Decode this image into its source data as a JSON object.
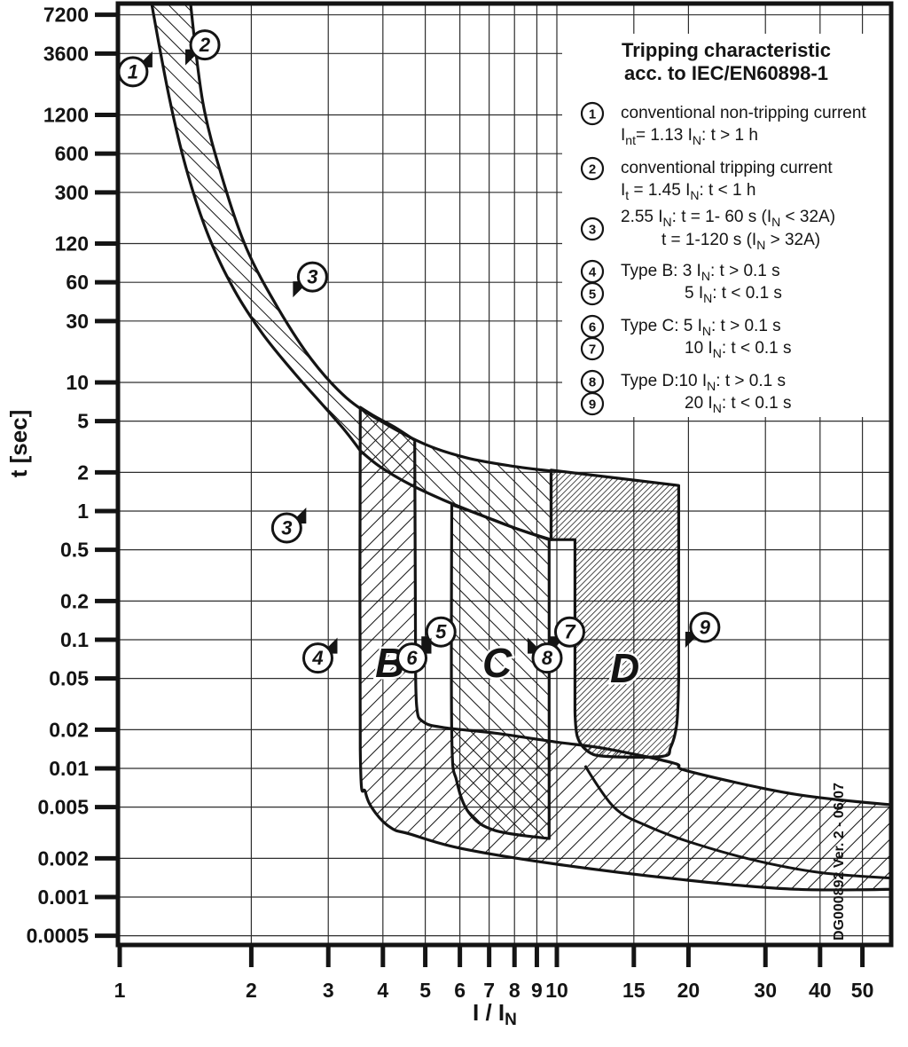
{
  "chart_data": {
    "type": "area",
    "title": "Tripping characteristic acc. to IEC/EN60898-1",
    "title_lines": [
      "Tripping characteristic",
      "acc. to IEC/EN60898-1"
    ],
    "xlabel": "I / I~N~",
    "ylabel": "t [sec]",
    "x_ticks": [
      1,
      2,
      3,
      4,
      5,
      6,
      7,
      8,
      9,
      10,
      15,
      20,
      30,
      40,
      50
    ],
    "y_ticks": [
      7200,
      3600,
      1200,
      600,
      300,
      120,
      60,
      30,
      10,
      5,
      2,
      1,
      0.5,
      0.2,
      0.1,
      0.05,
      0.02,
      0.01,
      0.005,
      0.002,
      0.001,
      0.0005
    ],
    "xlim": [
      1,
      58.5
    ],
    "ylim": [
      0.00035,
      9300
    ],
    "grid": true,
    "legend_position": "top-right",
    "side_text": "DG000892 Ver. 2 - 06/07",
    "colors": {
      "ink": "#141414",
      "grid": "#2e2e2e",
      "background": "#ffffff"
    },
    "legend_items": [
      {
        "num": "1",
        "lines": [
          [
            "conventional non-tripping current",
            0
          ],
          [
            "I~nt~= 1.13 I~N~: t > 1 h",
            0
          ]
        ]
      },
      {
        "num": "2",
        "lines": [
          [
            "conventional tripping current",
            0
          ],
          [
            "I~t~ = 1.45 I~N~: t < 1 h",
            0
          ]
        ]
      },
      {
        "num": "3",
        "lines": [
          [
            "2.55 I~N~: t = 1- 60 s (I~N~ < 32A)",
            0
          ],
          [
            "t = 1-120 s (I~N~ > 32A)",
            1
          ]
        ]
      },
      {
        "num": "4",
        "lines": [
          [
            "Type B: 3 I~N~: t > 0.1 s",
            0
          ]
        ]
      },
      {
        "num": "5",
        "lines": [
          [
            "5 I~N~: t < 0.1 s",
            2
          ]
        ]
      },
      {
        "num": "6",
        "lines": [
          [
            "Type C: 5 I~N~: t > 0.1 s",
            0
          ]
        ]
      },
      {
        "num": "7",
        "lines": [
          [
            "10 I~N~: t < 0.1 s",
            2
          ]
        ]
      },
      {
        "num": "8",
        "lines": [
          [
            "Type D:10 I~N~: t > 0.1 s",
            0
          ]
        ]
      },
      {
        "num": "9",
        "lines": [
          [
            "20 I~N~: t < 0.1 s",
            2
          ]
        ]
      }
    ],
    "band_labels": [
      {
        "text": "B",
        "x": 4.15,
        "t": 0.066
      },
      {
        "text": "C",
        "x": 7.3,
        "t": 0.066
      },
      {
        "text": "D",
        "x": 14.3,
        "t": 0.06
      }
    ],
    "markers": [
      {
        "num": "1",
        "x": 1.072,
        "t": 2600,
        "flag": "ne"
      },
      {
        "num": "2",
        "x": 1.566,
        "t": 4200,
        "flag": "sw"
      },
      {
        "num": "3",
        "x": 2.76,
        "t": 66,
        "flag": "sw"
      },
      {
        "num": "3",
        "x": 2.41,
        "t": 0.74,
        "flag": "ne"
      },
      {
        "num": "4",
        "x": 2.84,
        "t": 0.072,
        "flag": "ne"
      },
      {
        "num": "5",
        "x": 5.43,
        "t": 0.115,
        "flag": "sw"
      },
      {
        "num": "6",
        "x": 4.66,
        "t": 0.072,
        "flag": "ne"
      },
      {
        "num": "7",
        "x": 10.7,
        "t": 0.115,
        "flag": "sw"
      },
      {
        "num": "8",
        "x": 9.5,
        "t": 0.072,
        "flag": "nw"
      },
      {
        "num": "9",
        "x": 21.8,
        "t": 0.125,
        "flag": "sw"
      }
    ],
    "bands": [
      {
        "name": "thermal-band",
        "hatch": "back",
        "points": [
          [
            1.45,
            9300,
            1
          ],
          [
            1.55,
            1500
          ],
          [
            1.72,
            380
          ],
          [
            1.95,
            110
          ],
          [
            2.3,
            38
          ],
          [
            2.75,
            15
          ],
          [
            3.3,
            7.6
          ],
          [
            4.0,
            4.9
          ],
          [
            5.0,
            3.3
          ],
          [
            6.2,
            2.6
          ],
          [
            7.8,
            2.25
          ],
          [
            9.7,
            2.05,
            1
          ],
          [
            9.7,
            0.6,
            1
          ],
          [
            8.0,
            0.74
          ],
          [
            6.6,
            0.95
          ],
          [
            5.5,
            1.22
          ],
          [
            4.6,
            1.62
          ],
          [
            3.95,
            2.2
          ],
          [
            3.55,
            2.95,
            1
          ],
          [
            3.28,
            4.2
          ],
          [
            2.9,
            6.8
          ],
          [
            2.5,
            12
          ],
          [
            2.12,
            24
          ],
          [
            1.83,
            52
          ],
          [
            1.6,
            135
          ],
          [
            1.43,
            420
          ],
          [
            1.3,
            1600
          ],
          [
            1.18,
            9300,
            1
          ]
        ]
      },
      {
        "name": "type-b-band",
        "hatch": "fwd",
        "points": [
          [
            3.55,
            6.4,
            1
          ],
          [
            3.55,
            0.014
          ],
          [
            3.65,
            0.0065
          ],
          [
            3.85,
            0.0045
          ],
          [
            4.2,
            0.0034
          ],
          [
            4.6,
            0.0031
          ],
          [
            6,
            0.0024
          ],
          [
            10,
            0.0018
          ],
          [
            20,
            0.00135
          ],
          [
            35,
            0.00115
          ],
          [
            59,
            0.00115,
            1
          ],
          [
            59,
            0.0052,
            1
          ],
          [
            35,
            0.0063
          ],
          [
            20,
            0.0095
          ],
          [
            18.5,
            0.011
          ],
          [
            13,
            0.0142
          ],
          [
            10,
            0.016
          ],
          [
            7.2,
            0.0188
          ],
          [
            5.5,
            0.0208
          ],
          [
            4.95,
            0.023
          ],
          [
            4.78,
            0.03
          ],
          [
            4.75,
            0.09,
            1
          ],
          [
            4.73,
            3.55,
            1
          ],
          [
            4.25,
            4.5
          ],
          [
            3.85,
            5.4
          ]
        ]
      },
      {
        "name": "type-c-band",
        "hatch": "back",
        "points": [
          [
            5.75,
            1.12,
            1
          ],
          [
            5.75,
            0.018
          ],
          [
            5.9,
            0.008
          ],
          [
            6.3,
            0.0045
          ],
          [
            7.2,
            0.0033
          ],
          [
            9.6,
            0.00285,
            1
          ],
          [
            9.6,
            0.6,
            1
          ],
          [
            8.0,
            0.74
          ],
          [
            6.6,
            0.95
          ]
        ]
      },
      {
        "name": "type-d-band",
        "hatch": "dense",
        "points": [
          [
            9.7,
            2.08,
            1
          ],
          [
            19,
            1.58,
            1
          ],
          [
            19,
            0.05,
            1
          ],
          [
            18.8,
            0.022
          ],
          [
            18.2,
            0.0145
          ],
          [
            17.4,
            0.0124
          ],
          [
            13,
            0.0124
          ],
          [
            11.8,
            0.0135
          ],
          [
            11.15,
            0.0175
          ],
          [
            11.0,
            0.028,
            1
          ],
          [
            11.0,
            0.6,
            1
          ],
          [
            9.7,
            0.6,
            1
          ]
        ]
      }
    ],
    "tail_divider": [
      [
        11.6,
        0.0105,
        1
      ],
      [
        13.5,
        0.005
      ],
      [
        16,
        0.0036
      ],
      [
        20,
        0.0027
      ],
      [
        28,
        0.00195
      ],
      [
        40,
        0.00155
      ],
      [
        59,
        0.0014,
        1
      ]
    ]
  }
}
